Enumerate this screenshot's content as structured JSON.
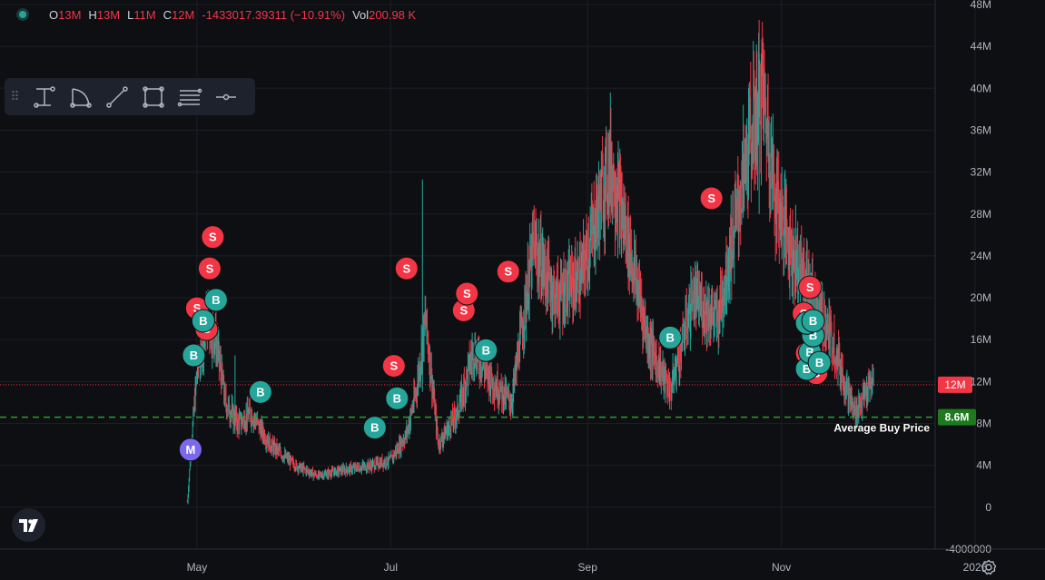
{
  "ohlc": {
    "o_label": "O",
    "o_value": "13M",
    "h_label": "H",
    "h_value": "13M",
    "l_label": "L",
    "l_value": "11M",
    "c_label": "C",
    "c_value": "12M",
    "change": "-1433017.39311 (−10.91%)",
    "vol_label": "Vol",
    "vol_value": "200.98 K"
  },
  "toolbar": {
    "tools": [
      "measure-icon",
      "arc-icon",
      "trend-line-icon",
      "rectangle-icon",
      "fib-lines-icon",
      "horizontal-ray-icon"
    ]
  },
  "colors": {
    "background": "#0e0f13",
    "up": "#26a69a",
    "down": "#f23645",
    "grid": "#1c1e24",
    "avg_line": "#2e9e2e",
    "marker_m": "#7b68ee"
  },
  "chart_data": {
    "type": "candlestick",
    "ylim": [
      -4000000,
      48000000
    ],
    "y_ticks": [
      "48M",
      "44M",
      "40M",
      "36M",
      "32M",
      "28M",
      "24M",
      "20M",
      "16M",
      "12M",
      "8M",
      "4M",
      "0",
      "-4000000"
    ],
    "y_tick_values": [
      48000000,
      44000000,
      40000000,
      36000000,
      32000000,
      28000000,
      24000000,
      20000000,
      16000000,
      12000000,
      8000000,
      4000000,
      0,
      -4000000
    ],
    "x_ticks": [
      "May",
      "Jul",
      "Sep",
      "Nov",
      "2026"
    ],
    "x_tick_dates": [
      "2025-05-01",
      "2025-07-01",
      "2025-09-01",
      "2025-11-01",
      "2026-01-01"
    ],
    "x_range": [
      "2025-02-28",
      "2026-01-23"
    ],
    "last_price_label": "12M",
    "last_price": 11700000,
    "avg_buy_price_label": "8.6M",
    "avg_buy_price": 8600000,
    "avg_buy_price_text": "Average Buy Price",
    "price_path": [
      [
        "2025-04-28",
        500000
      ],
      [
        "2025-04-29",
        5000000
      ],
      [
        "2025-05-01",
        13000000
      ],
      [
        "2025-05-04",
        18000000
      ],
      [
        "2025-05-07",
        16000000
      ],
      [
        "2025-05-10",
        10000000
      ],
      [
        "2025-05-14",
        8000000
      ],
      [
        "2025-05-18",
        9000000
      ],
      [
        "2025-05-24",
        6000000
      ],
      [
        "2025-06-01",
        4000000
      ],
      [
        "2025-06-08",
        3000000
      ],
      [
        "2025-06-15",
        3500000
      ],
      [
        "2025-06-25",
        4000000
      ],
      [
        "2025-07-01",
        4500000
      ],
      [
        "2025-07-06",
        7000000
      ],
      [
        "2025-07-09",
        11000000
      ],
      [
        "2025-07-12",
        18000000
      ],
      [
        "2025-07-16",
        6000000
      ],
      [
        "2025-07-22",
        9000000
      ],
      [
        "2025-07-27",
        15000000
      ],
      [
        "2025-08-02",
        12000000
      ],
      [
        "2025-08-08",
        10000000
      ],
      [
        "2025-08-15",
        25000000
      ],
      [
        "2025-08-22",
        20000000
      ],
      [
        "2025-08-30",
        22000000
      ],
      [
        "2025-09-08",
        33000000
      ],
      [
        "2025-09-14",
        25000000
      ],
      [
        "2025-09-20",
        16000000
      ],
      [
        "2025-09-27",
        11000000
      ],
      [
        "2025-10-04",
        20000000
      ],
      [
        "2025-10-12",
        18000000
      ],
      [
        "2025-10-18",
        28000000
      ],
      [
        "2025-10-22",
        35000000
      ],
      [
        "2025-10-26",
        40000000
      ],
      [
        "2025-10-30",
        30000000
      ],
      [
        "2025-11-05",
        24000000
      ],
      [
        "2025-11-11",
        20000000
      ],
      [
        "2025-11-17",
        16000000
      ],
      [
        "2025-11-21",
        12000000
      ],
      [
        "2025-11-24",
        9000000
      ],
      [
        "2025-11-30",
        12000000
      ]
    ],
    "markers": [
      {
        "date": "2025-04-29",
        "price": 5500000,
        "label": "M"
      },
      {
        "date": "2025-04-30",
        "price": 14500000,
        "label": "B"
      },
      {
        "date": "2025-05-01",
        "price": 19000000,
        "label": "S"
      },
      {
        "date": "2025-05-04",
        "price": 17000000,
        "label": "S"
      },
      {
        "date": "2025-05-03",
        "price": 17800000,
        "label": "B"
      },
      {
        "date": "2025-05-05",
        "price": 22800000,
        "label": "S"
      },
      {
        "date": "2025-05-06",
        "price": 25800000,
        "label": "S"
      },
      {
        "date": "2025-05-07",
        "price": 19800000,
        "label": "B"
      },
      {
        "date": "2025-05-21",
        "price": 11000000,
        "label": "B"
      },
      {
        "date": "2025-06-26",
        "price": 7600000,
        "label": "B"
      },
      {
        "date": "2025-07-02",
        "price": 13500000,
        "label": "S"
      },
      {
        "date": "2025-07-03",
        "price": 10400000,
        "label": "B"
      },
      {
        "date": "2025-07-06",
        "price": 22800000,
        "label": "S"
      },
      {
        "date": "2025-07-24",
        "price": 18800000,
        "label": "S"
      },
      {
        "date": "2025-07-25",
        "price": 20400000,
        "label": "S"
      },
      {
        "date": "2025-07-31",
        "price": 15000000,
        "label": "B"
      },
      {
        "date": "2025-08-07",
        "price": 22500000,
        "label": "S"
      },
      {
        "date": "2025-09-27",
        "price": 16200000,
        "label": "B"
      },
      {
        "date": "2025-10-10",
        "price": 29500000,
        "label": "S"
      },
      {
        "date": "2025-11-08",
        "price": 18500000,
        "label": "S"
      },
      {
        "date": "2025-11-10",
        "price": 21000000,
        "label": "S"
      },
      {
        "date": "2025-11-09",
        "price": 14700000,
        "label": "S"
      },
      {
        "date": "2025-11-12",
        "price": 12800000,
        "label": "S"
      },
      {
        "date": "2025-11-09",
        "price": 13200000,
        "label": "B"
      },
      {
        "date": "2025-11-10",
        "price": 14800000,
        "label": "B"
      },
      {
        "date": "2025-11-11",
        "price": 16400000,
        "label": "B"
      },
      {
        "date": "2025-11-09",
        "price": 17600000,
        "label": "B"
      },
      {
        "date": "2025-11-11",
        "price": 17800000,
        "label": "B"
      },
      {
        "date": "2025-11-13",
        "price": 13800000,
        "label": "B"
      }
    ]
  }
}
